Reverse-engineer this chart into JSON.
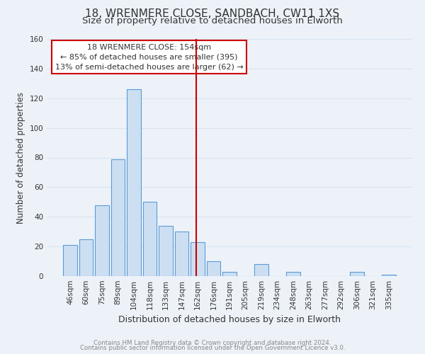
{
  "title": "18, WRENMERE CLOSE, SANDBACH, CW11 1XS",
  "subtitle": "Size of property relative to detached houses in Elworth",
  "xlabel": "Distribution of detached houses by size in Elworth",
  "ylabel": "Number of detached properties",
  "bar_labels": [
    "46sqm",
    "60sqm",
    "75sqm",
    "89sqm",
    "104sqm",
    "118sqm",
    "133sqm",
    "147sqm",
    "162sqm",
    "176sqm",
    "191sqm",
    "205sqm",
    "219sqm",
    "234sqm",
    "248sqm",
    "263sqm",
    "277sqm",
    "292sqm",
    "306sqm",
    "321sqm",
    "335sqm"
  ],
  "bar_values": [
    21,
    25,
    48,
    79,
    126,
    50,
    34,
    30,
    23,
    10,
    3,
    0,
    8,
    0,
    3,
    0,
    0,
    0,
    3,
    0,
    1
  ],
  "bar_color": "#ccdff2",
  "bar_edge_color": "#5b9bd5",
  "vline_color": "#cc0000",
  "ylim": [
    0,
    160
  ],
  "yticks": [
    0,
    20,
    40,
    60,
    80,
    100,
    120,
    140,
    160
  ],
  "annotation_title": "18 WRENMERE CLOSE: 154sqm",
  "annotation_line1": "← 85% of detached houses are smaller (395)",
  "annotation_line2": "13% of semi-detached houses are larger (62) →",
  "annotation_box_color": "#ffffff",
  "annotation_box_edge": "#cc0000",
  "footer_line1": "Contains HM Land Registry data © Crown copyright and database right 2024.",
  "footer_line2": "Contains public sector information licensed under the Open Government Licence v3.0.",
  "background_color": "#edf2f9",
  "grid_color": "#d8e4f0",
  "title_fontsize": 11,
  "subtitle_fontsize": 9.5,
  "tick_fontsize": 7.5,
  "ylabel_fontsize": 8.5,
  "xlabel_fontsize": 9
}
